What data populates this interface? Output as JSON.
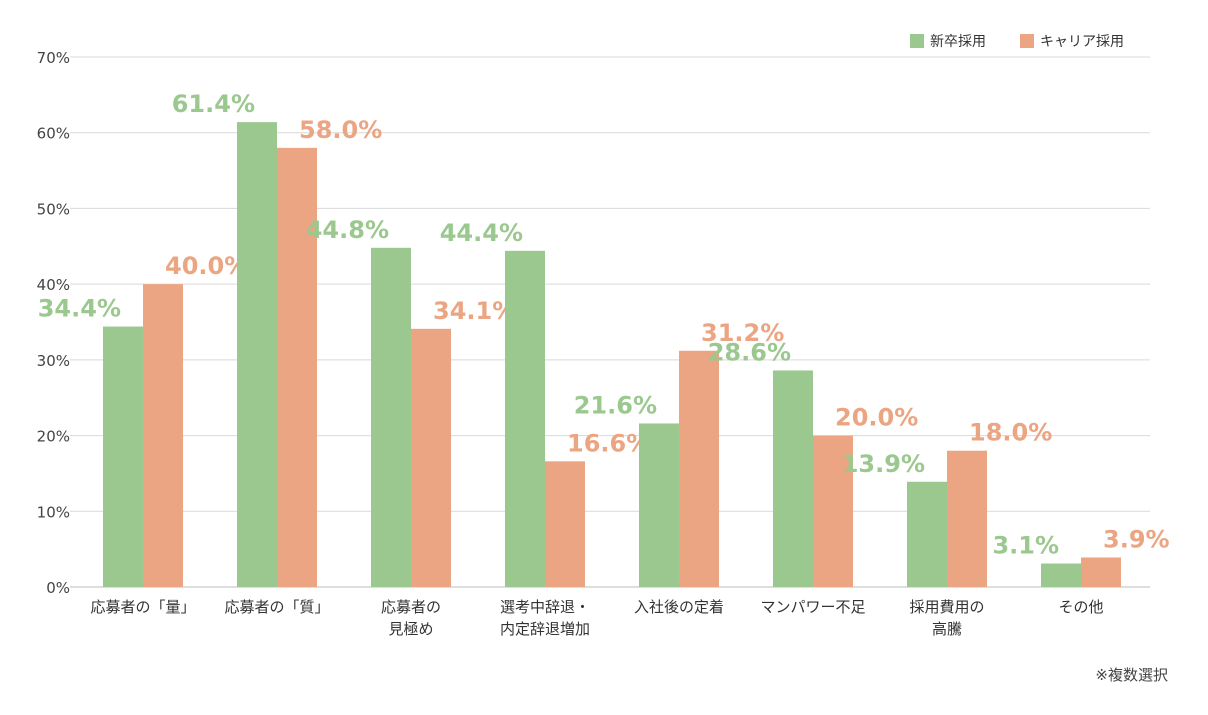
{
  "chart_data": {
    "type": "bar",
    "categories": [
      [
        "応募者の「量」"
      ],
      [
        "応募者の「質」"
      ],
      [
        "応募者の",
        "見極め"
      ],
      [
        "選考中辞退・",
        "内定辞退増加"
      ],
      [
        "入社後の定着"
      ],
      [
        "マンパワー不足"
      ],
      [
        "採用費用の",
        "高騰"
      ],
      [
        "その他"
      ]
    ],
    "series": [
      {
        "name": "新卒採用",
        "values": [
          34.4,
          61.4,
          44.8,
          44.4,
          21.6,
          28.6,
          13.9,
          3.1
        ],
        "color": "#9bc88f"
      },
      {
        "name": "キャリア採用",
        "values": [
          40.0,
          58.0,
          34.1,
          16.6,
          31.2,
          20.0,
          18.0,
          3.9
        ],
        "color": "#eca582"
      }
    ],
    "data_labels": [
      [
        "34.4%",
        "61.4%",
        "44.8%",
        "44.4%",
        "21.6%",
        "28.6%",
        "13.9%",
        "3.1%"
      ],
      [
        "40.0%",
        "58.0%",
        "34.1%",
        "16.6%",
        "31.2%",
        "20.0%",
        "18.0%",
        "3.9%"
      ]
    ],
    "ylim": [
      0,
      70
    ],
    "yticks": [
      0,
      10,
      20,
      30,
      40,
      50,
      60,
      70
    ],
    "ytick_suffix": "%",
    "grid": true,
    "legend_position": "top-right",
    "xlabel": "",
    "ylabel": ""
  },
  "note": "※複数選択"
}
